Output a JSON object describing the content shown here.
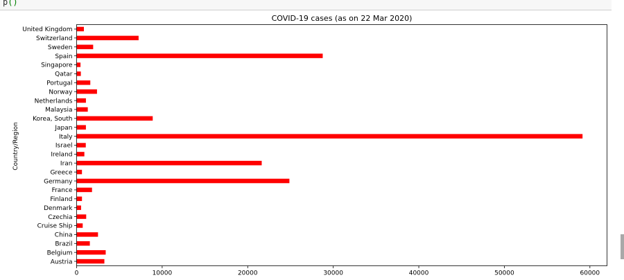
{
  "cell": {
    "code_fragment": "p",
    "code_paren": "()"
  },
  "chart_data": {
    "type": "bar",
    "orientation": "horizontal",
    "title": "COVID-19 cases (as on 22 Mar 2020)",
    "xlabel": "",
    "ylabel": "Country/Region",
    "xlim": [
      0,
      62000
    ],
    "xticks": [
      0,
      10000,
      20000,
      30000,
      40000,
      50000,
      60000
    ],
    "bar_color": "#ff0000",
    "grid": false,
    "legend": "none",
    "categories": [
      "Austria",
      "Belgium",
      "Brazil",
      "China",
      "Cruise Ship",
      "Czechia",
      "Denmark",
      "Finland",
      "France",
      "Germany",
      "Greece",
      "Iran",
      "Ireland",
      "Israel",
      "Italy",
      "Japan",
      "Korea, South",
      "Malaysia",
      "Netherlands",
      "Norway",
      "Portugal",
      "Qatar",
      "Singapore",
      "Spain",
      "Sweden",
      "Switzerland",
      "United Kingdom"
    ],
    "values": [
      3244,
      3401,
      1546,
      2500,
      712,
      1120,
      520,
      626,
      1800,
      24873,
      624,
      21638,
      906,
      1071,
      59138,
      1086,
      8897,
      1306,
      1088,
      2383,
      1600,
      494,
      455,
      28768,
      1934,
      7245,
      850
    ]
  }
}
